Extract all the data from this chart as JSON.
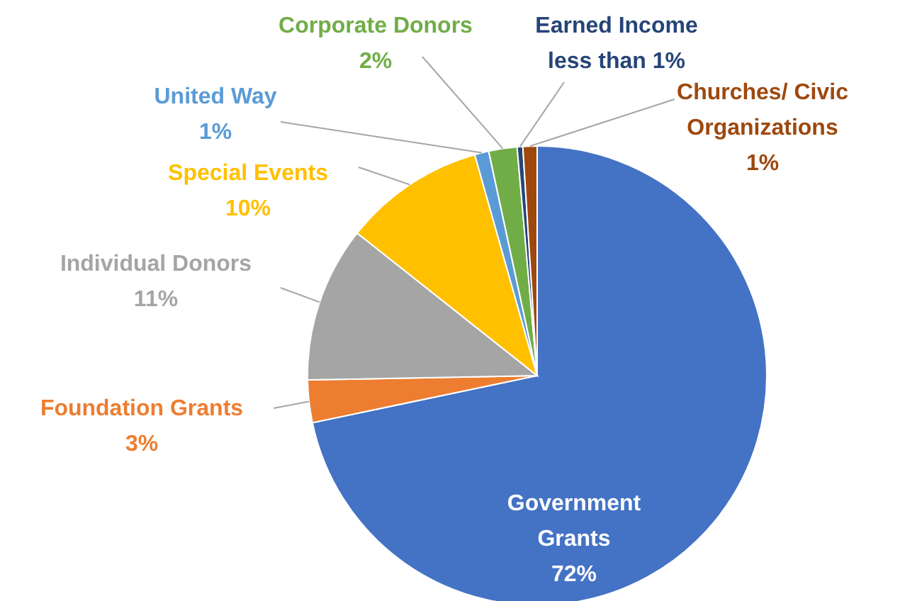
{
  "chart_data": {
    "type": "pie",
    "categories": [
      "Government Grants",
      "Foundation Grants",
      "Individual Donors",
      "Special Events",
      "United Way",
      "Corporate Donors",
      "Earned Income",
      "Churches/ Civic Organizations"
    ],
    "values": [
      72,
      3,
      11,
      10,
      1,
      2,
      0.4,
      1
    ],
    "value_labels": [
      "72%",
      "3%",
      "11%",
      "10%",
      "1%",
      "2%",
      "less than 1%",
      "1%"
    ],
    "colors": [
      "#4472c4",
      "#ed7d31",
      "#a5a5a5",
      "#ffc000",
      "#5b9bd5",
      "#70ad47",
      "#264478",
      "#9e480e"
    ],
    "legend": false
  }
}
